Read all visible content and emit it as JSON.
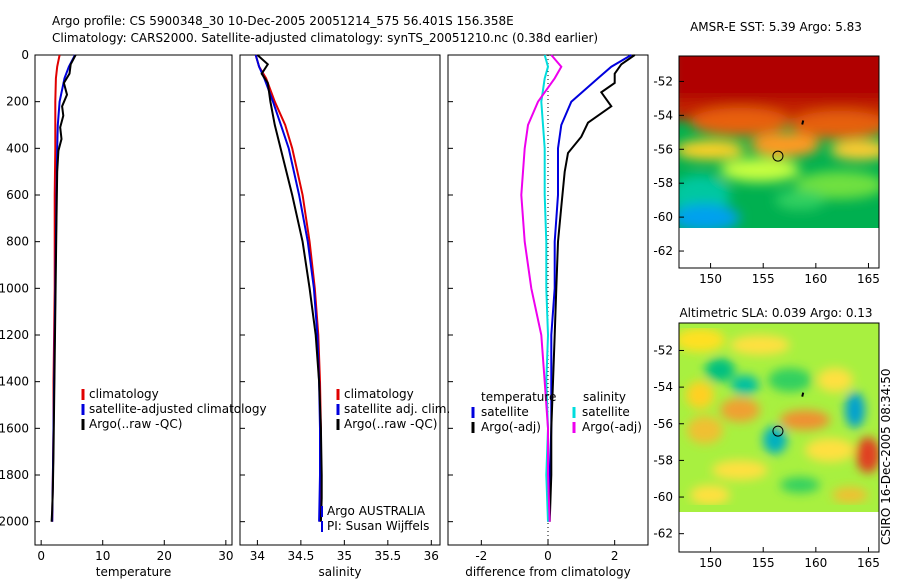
{
  "header": {
    "line1": "Argo profile: CS 5900348_30 10-Dec-2005 20051214_575 56.401S 156.358E",
    "line2": "Climatology: CARS2000. Satellite-adjusted climatology: synTS_20051210.nc (0.38d earlier)"
  },
  "side_label": "CSIRO 16-Dec-2005 08:34:50",
  "chart_data": [
    {
      "type": "line",
      "id": "temperature",
      "xlabel": "temperature",
      "ylabel": "",
      "xlim": [
        -1,
        31
      ],
      "ylim": [
        2100,
        0
      ],
      "xticks": [
        0,
        10,
        20,
        30
      ],
      "yticks": [
        0,
        200,
        400,
        600,
        800,
        1000,
        1200,
        1400,
        1600,
        1800,
        2000
      ],
      "legend": [
        "climatology",
        "satellite-adjusted climatology",
        "Argo(..raw -QC)"
      ],
      "series": [
        {
          "name": "climatology",
          "color": "#e00000",
          "x": [
            3.0,
            2.6,
            2.4,
            2.3,
            2.3,
            2.3,
            2.2,
            2.2,
            2.2,
            2.1,
            2.0,
            2.0,
            1.9,
            1.8
          ],
          "y": [
            0,
            50,
            100,
            200,
            300,
            400,
            600,
            800,
            1000,
            1200,
            1400,
            1600,
            1800,
            2000
          ]
        },
        {
          "name": "satellite-adjusted climatology",
          "color": "#0000dd",
          "x": [
            5.5,
            4.5,
            3.8,
            3.0,
            2.7,
            2.6,
            2.5,
            2.4,
            2.3,
            2.2,
            2.1,
            2.0,
            1.9,
            1.8
          ],
          "y": [
            0,
            50,
            100,
            200,
            300,
            400,
            600,
            800,
            1000,
            1200,
            1400,
            1600,
            1800,
            2000
          ]
        },
        {
          "name": "Argo(..raw -QC)",
          "color": "#000000",
          "x": [
            5.6,
            4.8,
            4.6,
            3.7,
            4.2,
            3.4,
            3.6,
            3.1,
            3.3,
            2.8,
            2.6,
            2.5,
            2.4,
            2.3,
            2.2,
            2.1,
            2.0,
            1.9,
            1.8,
            1.7
          ],
          "y": [
            0,
            40,
            80,
            120,
            170,
            220,
            260,
            310,
            360,
            410,
            500,
            700,
            900,
            1100,
            1300,
            1500,
            1700,
            1850,
            1950,
            2000
          ]
        }
      ]
    },
    {
      "type": "line",
      "id": "salinity",
      "xlabel": "salinity",
      "ylabel": "",
      "xlim": [
        33.8,
        36.1
      ],
      "ylim": [
        2100,
        0
      ],
      "xticks": [
        34,
        34.5,
        35,
        35.5,
        36
      ],
      "legend": [
        "climatology",
        "satellite adj. clim.",
        "Argo(..raw -QC)"
      ],
      "annotations": [
        "Argo AUSTRALIA",
        "PI: Susan Wijffels"
      ],
      "series": [
        {
          "name": "climatology",
          "color": "#e00000",
          "x": [
            33.98,
            34.02,
            34.1,
            34.2,
            34.32,
            34.4,
            34.52,
            34.6,
            34.66,
            34.7,
            34.72,
            34.73,
            34.73,
            34.72
          ],
          "y": [
            0,
            50,
            100,
            200,
            300,
            400,
            600,
            800,
            1000,
            1200,
            1400,
            1600,
            1800,
            2000
          ]
        },
        {
          "name": "satellite adj. clim.",
          "color": "#0000dd",
          "x": [
            33.98,
            34.02,
            34.08,
            34.18,
            34.27,
            34.36,
            34.48,
            34.58,
            34.65,
            34.69,
            34.71,
            34.72,
            34.72,
            34.71
          ],
          "y": [
            0,
            50,
            100,
            200,
            300,
            400,
            600,
            800,
            1000,
            1200,
            1400,
            1600,
            1800,
            2000
          ]
        },
        {
          "name": "Argo(..raw -QC)",
          "color": "#000000",
          "x": [
            34.0,
            34.12,
            34.05,
            34.12,
            34.15,
            34.2,
            34.3,
            34.4,
            34.52,
            34.6,
            34.67,
            34.71,
            34.73,
            34.74,
            34.74,
            34.73
          ],
          "y": [
            0,
            40,
            80,
            120,
            200,
            300,
            450,
            600,
            800,
            1000,
            1200,
            1400,
            1600,
            1800,
            1900,
            2000
          ]
        }
      ]
    },
    {
      "type": "line",
      "id": "difference",
      "xlabel": "difference from climatology",
      "ylabel": "",
      "xlim": [
        -3,
        3
      ],
      "ylim": [
        2100,
        0
      ],
      "xticks": [
        -2,
        0,
        2
      ],
      "legend_groups": [
        {
          "title": "temperature",
          "items": [
            "satellite",
            "Argo(-adj)"
          ]
        },
        {
          "title": "salinity",
          "items": [
            "satellite",
            "Argo(-adj)"
          ]
        }
      ],
      "series": [
        {
          "name": "temperature satellite",
          "color": "#0000dd",
          "x": [
            2.5,
            1.9,
            1.5,
            0.7,
            0.4,
            0.3,
            0.3,
            0.2,
            0.2,
            0.1,
            0.1,
            0.1,
            0.05,
            0.0
          ],
          "y": [
            0,
            50,
            100,
            200,
            300,
            400,
            600,
            800,
            1000,
            1200,
            1400,
            1600,
            1800,
            2000
          ]
        },
        {
          "name": "temperature Argo(-adj)",
          "color": "#000000",
          "x": [
            2.6,
            2.2,
            2.0,
            2.0,
            1.6,
            1.9,
            1.2,
            1.0,
            0.6,
            0.5,
            0.4,
            0.3,
            0.25,
            0.2,
            0.15,
            0.1,
            0.1,
            0.05
          ],
          "y": [
            0,
            40,
            80,
            120,
            160,
            220,
            290,
            350,
            420,
            500,
            650,
            800,
            1000,
            1200,
            1400,
            1600,
            1800,
            2000
          ]
        },
        {
          "name": "salinity satellite",
          "color": "#00dddd",
          "x": [
            -0.1,
            0.0,
            -0.1,
            -0.2,
            -0.15,
            -0.1,
            -0.1,
            -0.05,
            -0.05,
            0.0,
            -0.05,
            0.0,
            -0.05,
            0.0
          ],
          "y": [
            0,
            50,
            100,
            200,
            300,
            400,
            600,
            800,
            1000,
            1200,
            1400,
            1600,
            1800,
            2000
          ]
        },
        {
          "name": "salinity Argo(-adj)",
          "color": "#ee00ee",
          "x": [
            0.1,
            0.4,
            0.2,
            -0.3,
            -0.6,
            -0.7,
            -0.8,
            -0.7,
            -0.5,
            -0.2,
            -0.1,
            0.0,
            0.0,
            0.05
          ],
          "y": [
            0,
            50,
            100,
            200,
            300,
            400,
            600,
            800,
            1000,
            1200,
            1400,
            1600,
            1800,
            2000
          ]
        }
      ]
    },
    {
      "type": "heatmap",
      "id": "sst_map",
      "title": "AMSR-E SST: 5.39 Argo: 5.83",
      "xlim": [
        147,
        166
      ],
      "ylim": [
        -63,
        -50.5
      ],
      "xticks": [
        150,
        155,
        160,
        165
      ],
      "yticks": [
        -52,
        -54,
        -56,
        -58,
        -60,
        -62
      ],
      "marker": {
        "lon": 156.4,
        "lat": -56.4
      }
    },
    {
      "type": "heatmap",
      "id": "sla_map",
      "title": "Altimetric SLA: 0.039 Argo: 0.13",
      "xlim": [
        147,
        166
      ],
      "ylim": [
        -63,
        -50.5
      ],
      "xticks": [
        150,
        155,
        160,
        165
      ],
      "yticks": [
        -52,
        -54,
        -56,
        -58,
        -60,
        -62
      ],
      "marker": {
        "lon": 156.4,
        "lat": -56.4
      }
    }
  ]
}
